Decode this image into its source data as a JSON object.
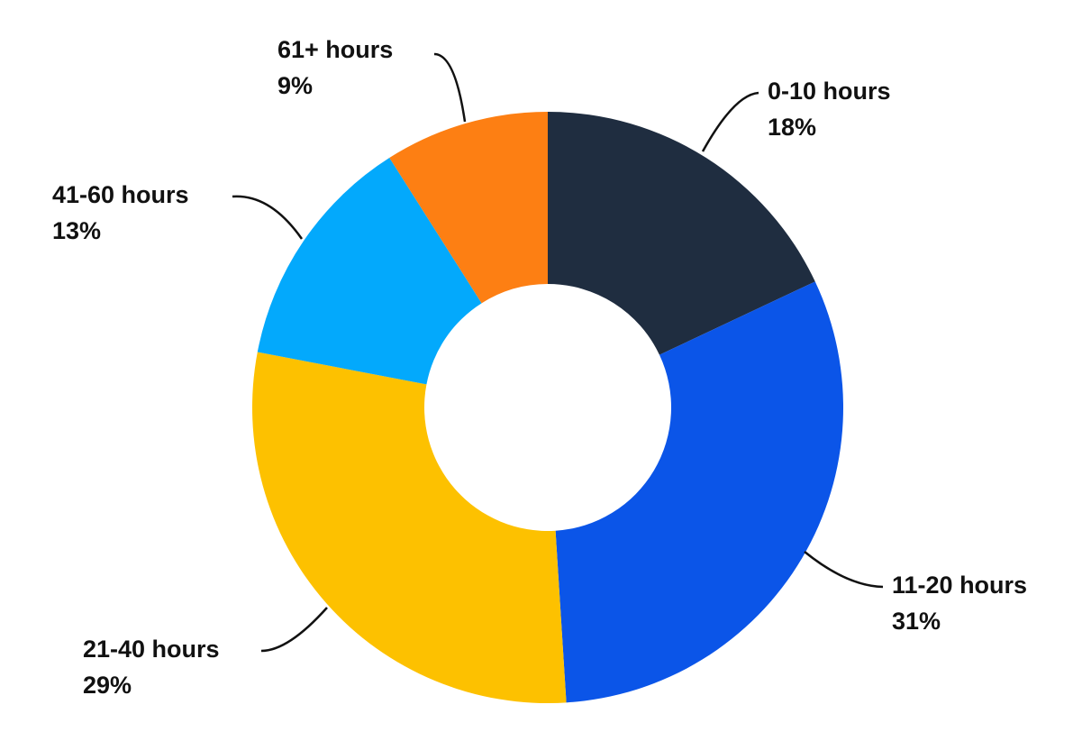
{
  "chart_data": {
    "type": "donut",
    "categories": [
      "0-10 hours",
      "11-20 hours",
      "21-40 hours",
      "41-60 hours",
      "61+ hours"
    ],
    "values": [
      18,
      31,
      29,
      13,
      9
    ],
    "value_labels": [
      "18%",
      "31%",
      "29%",
      "13%",
      "9%"
    ],
    "colors": [
      "#1f2d40",
      "#0b55e8",
      "#fdc100",
      "#03a9fc",
      "#fd7f13"
    ]
  }
}
